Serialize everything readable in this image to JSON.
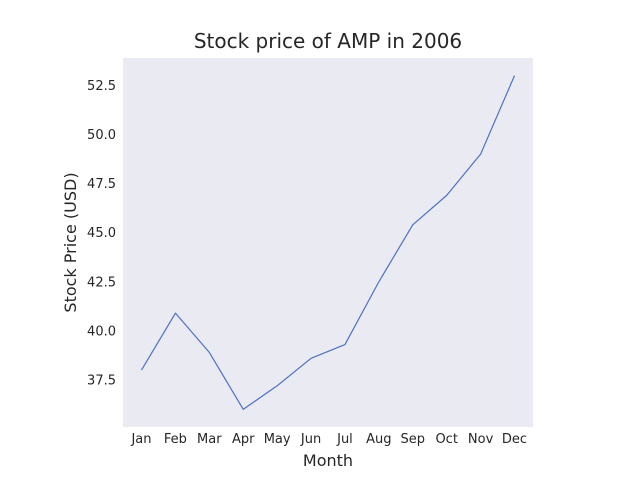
{
  "chart_data": {
    "type": "line",
    "title": "Stock price of AMP in 2006",
    "xlabel": "Month",
    "ylabel": "Stock Price (USD)",
    "categories": [
      "Jan",
      "Feb",
      "Mar",
      "Apr",
      "May",
      "Jun",
      "Jul",
      "Aug",
      "Sep",
      "Oct",
      "Nov",
      "Dec"
    ],
    "series": [
      {
        "values": [
          38.0,
          40.9,
          38.9,
          36.0,
          37.2,
          38.6,
          39.3,
          42.5,
          45.4,
          46.9,
          49.0,
          53.0
        ],
        "color": "#4c72c4"
      }
    ],
    "yticks": [
      37.5,
      40.0,
      42.5,
      45.0,
      47.5,
      50.0,
      52.5
    ],
    "ylim": [
      35.1,
      53.9
    ],
    "grid": false,
    "background": "#eaeaf2"
  }
}
